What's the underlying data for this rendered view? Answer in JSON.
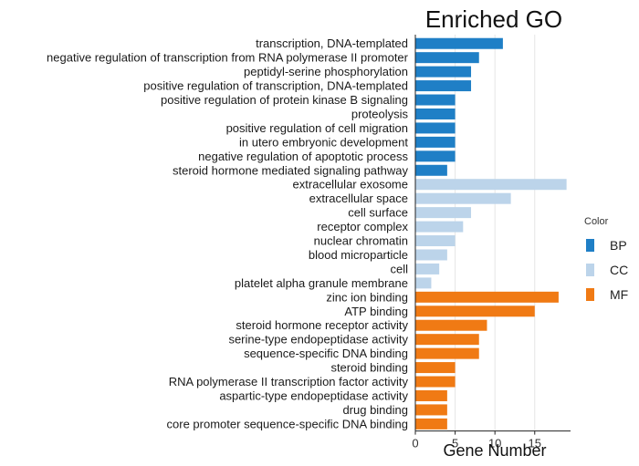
{
  "chart_data": {
    "type": "bar",
    "orientation": "horizontal",
    "title": "Enriched GO",
    "xlabel": "Gene Number",
    "ylabel": "",
    "xlim": [
      0,
      19.5
    ],
    "xticks": [
      0,
      5,
      10,
      15
    ],
    "grid": "vertical",
    "legend": {
      "title": "Color",
      "placement": "right",
      "entries": [
        {
          "label": "BP",
          "color": "#1f7fc6"
        },
        {
          "label": "CC",
          "color": "#bcd4ea"
        },
        {
          "label": "MF",
          "color": "#f07a14"
        }
      ]
    },
    "categories": [
      "transcription, DNA-templated",
      "negative regulation of transcription from RNA polymerase II promoter",
      "peptidyl-serine phosphorylation",
      "positive regulation of transcription, DNA-templated",
      "positive regulation of protein kinase B signaling",
      "proteolysis",
      "positive regulation of cell migration",
      "in utero embryonic development",
      "negative regulation of apoptotic process",
      "steroid hormone mediated signaling pathway",
      "extracellular exosome",
      "extracellular space",
      "cell surface",
      "receptor complex",
      "nuclear chromatin",
      "blood microparticle",
      "cell",
      "platelet alpha granule membrane",
      "zinc ion binding",
      "ATP binding",
      "steroid hormone receptor activity",
      "serine-type endopeptidase activity",
      "sequence-specific DNA binding",
      "steroid binding",
      "RNA polymerase II transcription factor activity",
      "aspartic-type endopeptidase activity",
      "drug binding",
      "core promoter sequence-specific DNA binding"
    ],
    "values": [
      11,
      8,
      7,
      7,
      5,
      5,
      5,
      5,
      5,
      4,
      19,
      12,
      7,
      6,
      5,
      4,
      3,
      2,
      18,
      15,
      9,
      8,
      8,
      5,
      5,
      4,
      4,
      4
    ],
    "groups": [
      "BP",
      "BP",
      "BP",
      "BP",
      "BP",
      "BP",
      "BP",
      "BP",
      "BP",
      "BP",
      "CC",
      "CC",
      "CC",
      "CC",
      "CC",
      "CC",
      "CC",
      "CC",
      "MF",
      "MF",
      "MF",
      "MF",
      "MF",
      "MF",
      "MF",
      "MF",
      "MF",
      "MF"
    ]
  }
}
